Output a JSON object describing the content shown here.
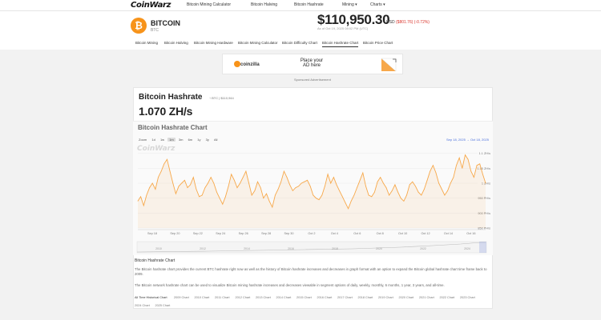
{
  "brand": "CoinWarz",
  "topnav": {
    "links": [
      "Bitcoin Mining Calculator",
      "Bitcoin Halving",
      "Bitcoin Hashrate",
      "Mining ▾",
      "Charts ▾"
    ]
  },
  "coin": {
    "name": "BITCOIN",
    "ticker": "BTC",
    "logo_glyph": "₿",
    "price": "$110,950.30",
    "price_unit": "USD",
    "price_change": "($801.76) (-0.72%)",
    "price_date": "As of Oct 19, 2025 08:02 PM (UTC)"
  },
  "subnav": {
    "tabs": [
      "Bitcoin Mining",
      "Bitcoin Halving",
      "Bitcoin Mining Hardware",
      "Bitcoin Mining Calculator",
      "Bitcoin Difficulty Chart",
      "Bitcoin Hashrate Chart",
      "Bitcoin Price Chart"
    ],
    "active_index": 5
  },
  "ad": {
    "brand": "coinzilla",
    "headline": "Place your AD here",
    "sponsored": "Sponsored Advertisement"
  },
  "hashrate": {
    "title": "Bitcoin Hashrate",
    "meta": "↑ BTC | $110,944",
    "value": "1.070 ZH/s"
  },
  "chart_panel": {
    "title": "Bitcoin Hashrate Chart",
    "zoom_label": "Zoom",
    "zoom_options": [
      "1d",
      "1w",
      "1m",
      "3m",
      "6m",
      "1y",
      "3y",
      "All"
    ],
    "zoom_selected": 2,
    "range": "Sep 18, 2025  →  Oct 18, 2025",
    "watermark": "CoinWarz"
  },
  "chart_data": {
    "type": "line",
    "title": "Bitcoin Hashrate Chart",
    "x_ticks": [
      "Sep 18",
      "Sep 20",
      "Sep 22",
      "Sep 24",
      "Sep 26",
      "Sep 28",
      "Sep 30",
      "Oct 2",
      "Oct 4",
      "Oct 6",
      "Oct 8",
      "Oct 10",
      "Oct 12",
      "Oct 14",
      "Oct 16"
    ],
    "y_ticks": [
      "1.1 ZH/s",
      "1.05 ZH/s",
      "1 ZH/s",
      "950 PH/s",
      "900 PH/s",
      "850 PH/s"
    ],
    "y_unit": "PH/s",
    "ylim": [
      850,
      1110
    ],
    "series": [
      {
        "color": "#f7a84a",
        "values": [
          940,
          955,
          925,
          960,
          985,
          1000,
          980,
          1020,
          1040,
          1065,
          1080,
          1040,
          1000,
          965,
          990,
          1000,
          1010,
          985,
          995,
          1020,
          980,
          955,
          960,
          985,
          1000,
          1020,
          1000,
          970,
          950,
          930,
          955,
          990,
          1030,
          1010,
          985,
          1000,
          1020,
          1040,
          1000,
          960,
          975,
          1005,
          985,
          950,
          965,
          940,
          920,
          960,
          980,
          1005,
          1040,
          1020,
          995,
          975,
          985,
          990,
          1000,
          1005,
          1010,
          990,
          960,
          950,
          945,
          960,
          990,
          1030,
          1000,
          1020,
          995,
          975,
          955,
          935,
          915,
          940,
          960,
          985,
          1010,
          1035,
          990,
          960,
          955,
          970,
          1005,
          1020,
          1000,
          985,
          960,
          975,
          995,
          970,
          950,
          940,
          960,
          995,
          1005,
          990,
          970,
          960,
          980,
          1010,
          1040,
          1060,
          1035,
          1000,
          980,
          960,
          975,
          1000,
          1020,
          1060,
          1085,
          1050,
          1095,
          1080,
          1040,
          1020,
          1060,
          1065,
          1030,
          1000
        ]
      }
    ],
    "navigator_labels": [
      "2010",
      "2012",
      "2014",
      "2016",
      "2018",
      "2020",
      "2022",
      "2024"
    ]
  },
  "description": {
    "title": "Bitcoin Hashrate Chart",
    "p1": "The Bitcoin hashrate chart provides the current BTC hashrate right now as well as the history of Bitcoin hashrate increases and decreases in graph format with an option to expand the Bitcoin global hashrate chart time frame back to 2009.",
    "p2": "The Bitcoin network hashrate chart can be used to visualize Bitcoin mining hashrate increases and decreases viewable in segment options of daily, weekly, monthly, 6 months, 1 year, 3 years, and all-time."
  },
  "tags": [
    "All Time Historical Chart",
    "2009 Chart",
    "2010 Chart",
    "2011 Chart",
    "2012 Chart",
    "2013 Chart",
    "2014 Chart",
    "2015 Chart",
    "2016 Chart",
    "2017 Chart",
    "2018 Chart",
    "2019 Chart",
    "2020 Chart",
    "2021 Chart",
    "2022 Chart",
    "2023 Chart",
    "2024 Chart",
    "2025 Chart"
  ]
}
